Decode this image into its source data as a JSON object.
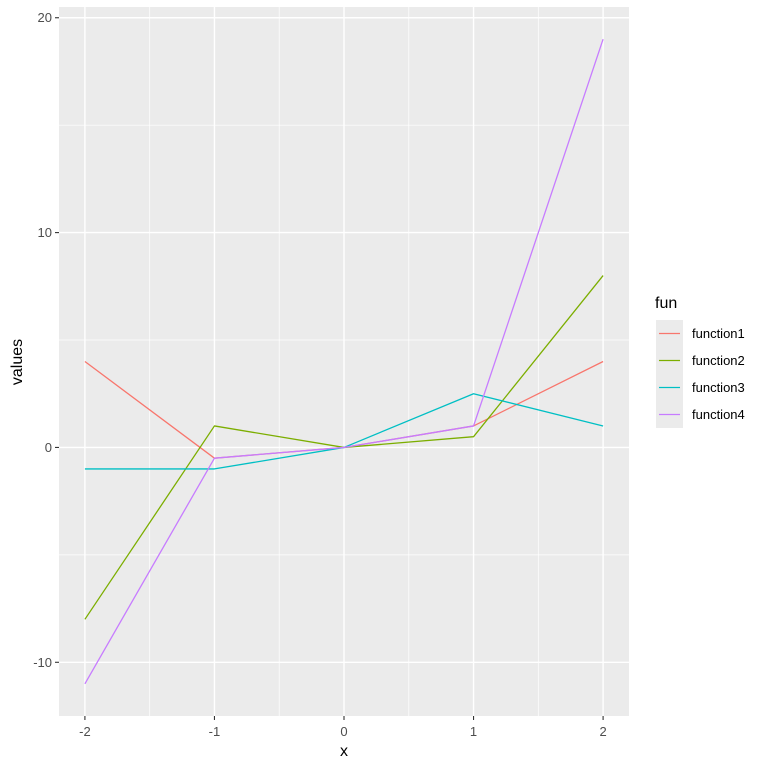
{
  "chart_data": {
    "type": "line",
    "xlabel": "x",
    "ylabel": "values",
    "x": [
      -2,
      -1,
      0,
      1,
      2
    ],
    "xticks": [
      -2,
      -1,
      0,
      1,
      2
    ],
    "yticks": [
      -10,
      0,
      10,
      20
    ],
    "xlim": [
      -2.2,
      2.2
    ],
    "ylim": [
      -12.5,
      20.5
    ],
    "grid": true,
    "legend": {
      "title": "fun",
      "position": "right"
    },
    "series": [
      {
        "name": "function1",
        "color": "#F8766D",
        "values": [
          4,
          -0.5,
          0,
          1,
          4
        ]
      },
      {
        "name": "function2",
        "color": "#7CAE00",
        "values": [
          -8,
          1,
          0,
          0.5,
          8
        ]
      },
      {
        "name": "function3",
        "color": "#00BFC4",
        "values": [
          -1,
          -1,
          0,
          2.5,
          1
        ]
      },
      {
        "name": "function4",
        "color": "#C77CFF",
        "values": [
          -11,
          -0.5,
          0,
          1,
          19
        ]
      }
    ]
  }
}
